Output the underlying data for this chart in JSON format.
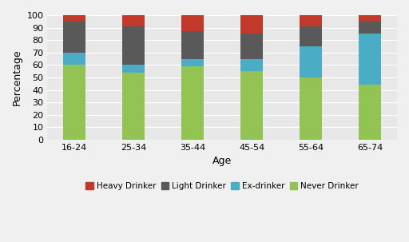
{
  "categories": [
    "16-24",
    "25-34",
    "35-44",
    "45-54",
    "55-64",
    "65-74"
  ],
  "never_drinker": [
    60,
    54,
    59,
    55,
    50,
    44
  ],
  "ex_drinker": [
    10,
    6,
    6,
    10,
    25,
    41
  ],
  "light_drinker": [
    25,
    31,
    22,
    20,
    16,
    10
  ],
  "heavy_drinker": [
    5,
    9,
    13,
    15,
    9,
    5
  ],
  "colors": {
    "never": "#92c353",
    "ex": "#4bacc6",
    "light": "#595959",
    "heavy": "#c0392b"
  },
  "legend_labels": [
    "Heavy Drinker",
    "Light Drinker",
    "Ex-drinker",
    "Never Drinker"
  ],
  "xlabel": "Age",
  "ylabel": "Percentage",
  "ylim": [
    0,
    100
  ],
  "yticks": [
    0,
    10,
    20,
    30,
    40,
    50,
    60,
    70,
    80,
    90,
    100
  ],
  "plot_bg_color": "#e8e8e8",
  "fig_bg_color": "#f0f0f0",
  "grid_color": "#ffffff",
  "bar_width": 0.38,
  "tick_fontsize": 8,
  "label_fontsize": 9
}
